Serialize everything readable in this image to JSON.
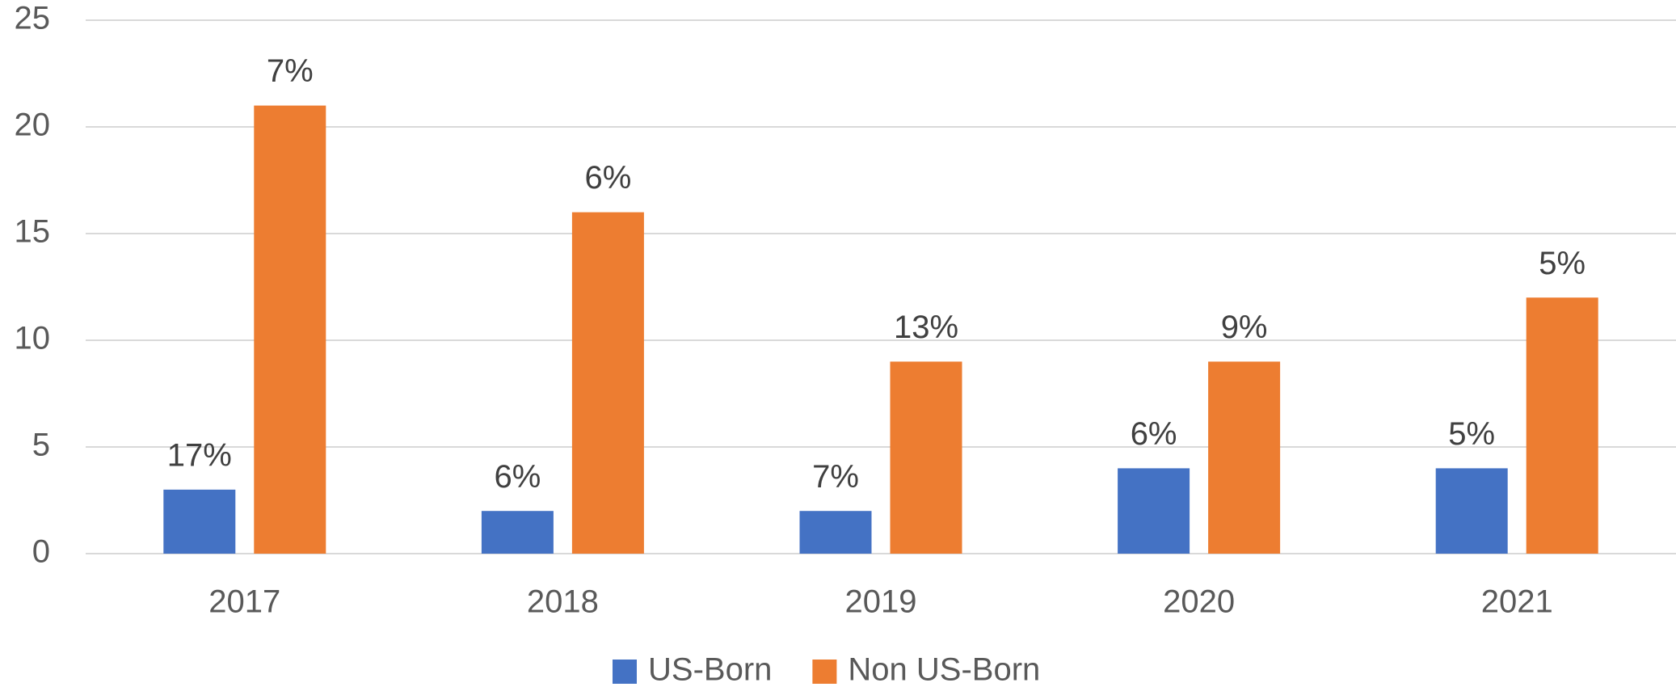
{
  "chart_data": {
    "type": "bar",
    "categories": [
      "2017",
      "2018",
      "2019",
      "2020",
      "2021"
    ],
    "series": [
      {
        "name": "US-Born",
        "color": "#4472c4",
        "values": [
          3,
          2,
          2,
          4,
          4
        ],
        "labels": [
          "17%",
          "6%",
          "7%",
          "6%",
          "5%"
        ]
      },
      {
        "name": "Non US-Born",
        "color": "#ed7d31",
        "values": [
          21,
          16,
          9,
          9,
          12
        ],
        "labels": [
          "7%",
          "6%",
          "13%",
          "9%",
          "5%"
        ]
      }
    ],
    "ylim": [
      0,
      25
    ],
    "yticks": [
      0,
      5,
      10,
      15,
      20,
      25
    ],
    "grid": true,
    "legend": "bottom"
  }
}
